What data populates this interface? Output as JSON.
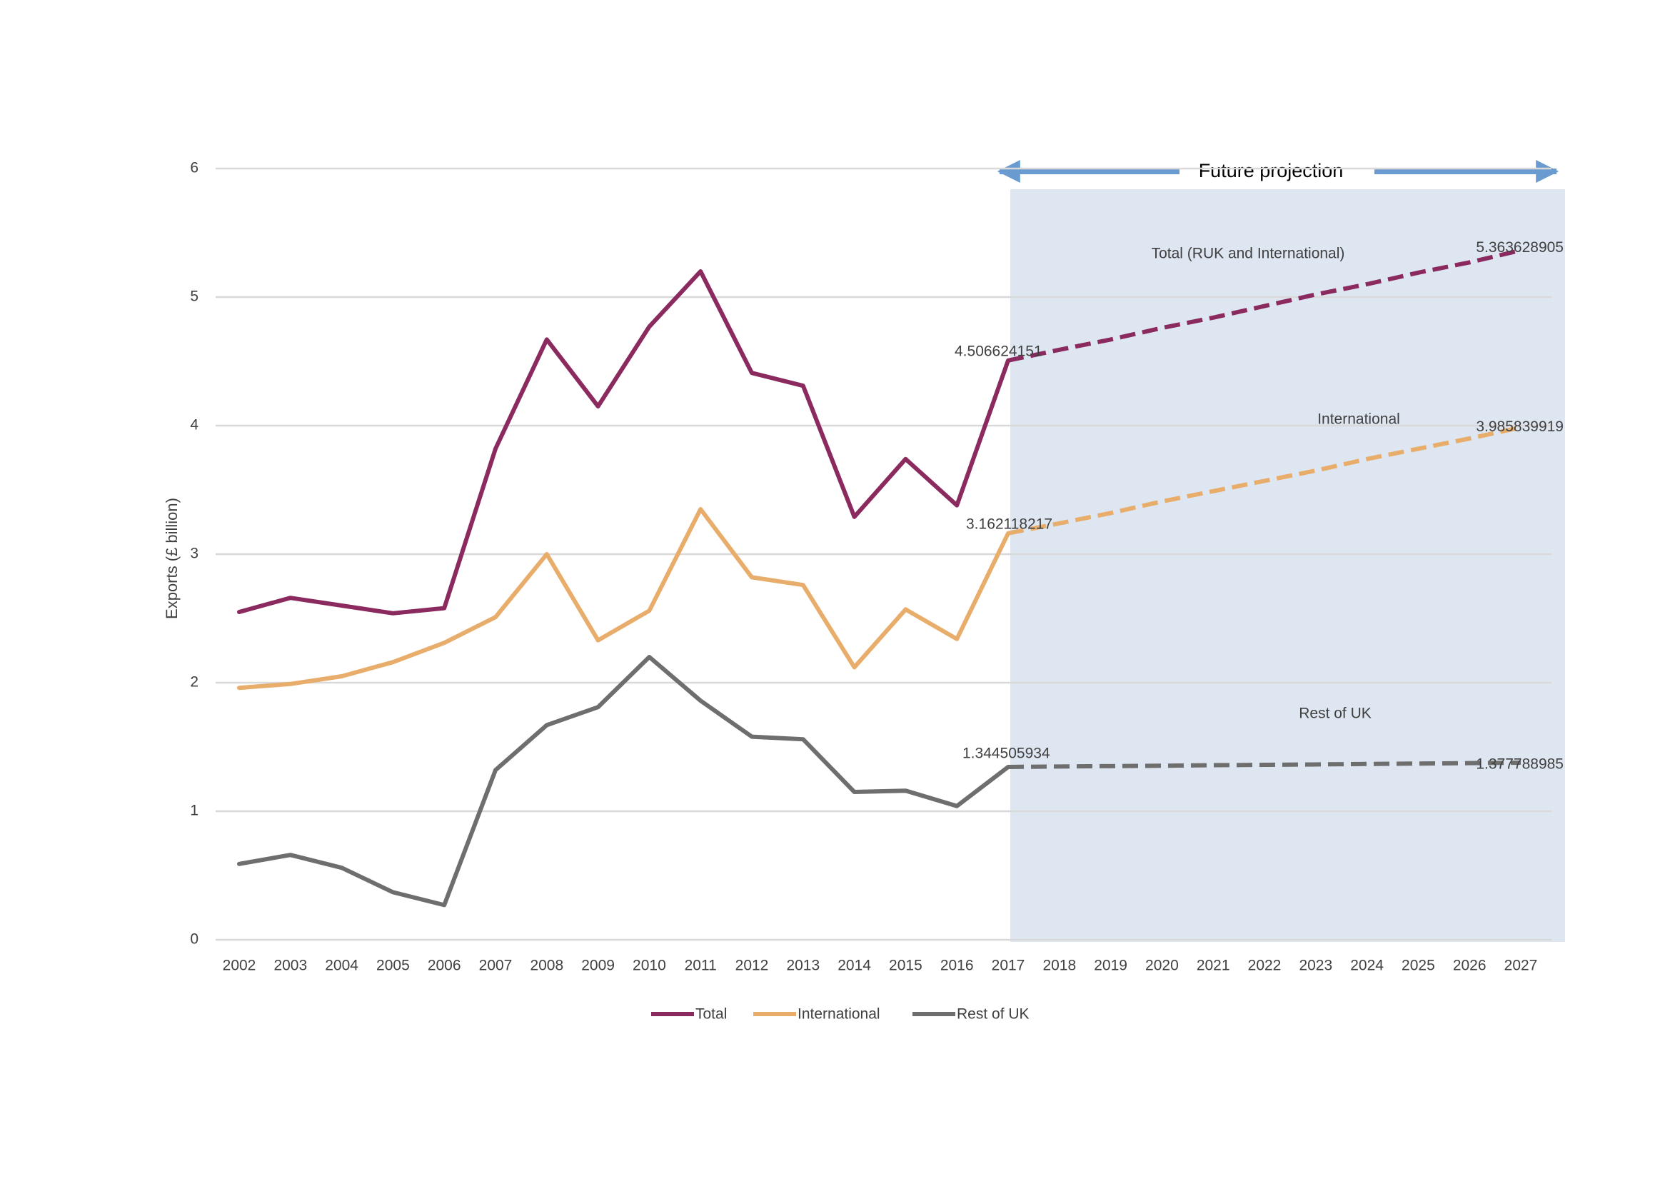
{
  "chart_data": {
    "type": "line",
    "ylabel": "Exports (£ billion)",
    "xlabel": "",
    "ylim": [
      0,
      6
    ],
    "yticks": [
      0,
      1,
      2,
      3,
      4,
      5,
      6
    ],
    "x": [
      2002,
      2003,
      2004,
      2005,
      2006,
      2007,
      2008,
      2009,
      2010,
      2011,
      2012,
      2013,
      2014,
      2015,
      2016,
      2017,
      2018,
      2019,
      2020,
      2021,
      2022,
      2023,
      2024,
      2025,
      2026,
      2027
    ],
    "grid": true,
    "legend_position": "bottom",
    "projection_start": 2017,
    "projection_label": "Future projection",
    "series": [
      {
        "name": "Total",
        "color": "#8B2A5F",
        "region_label": "Total (RUK and International)",
        "historical": [
          2.55,
          2.66,
          2.6,
          2.54,
          2.58,
          3.82,
          4.67,
          4.15,
          4.77,
          5.2,
          4.41,
          4.31,
          3.29,
          3.74,
          3.38,
          4.506624151
        ],
        "projection": [
          4.506624151,
          4.59,
          4.67,
          4.76,
          4.84,
          4.93,
          5.02,
          5.1,
          5.19,
          5.27,
          5.363628905
        ],
        "start_label": "4.506624151",
        "end_label": "5.363628905"
      },
      {
        "name": "International",
        "color": "#E8AD6B",
        "region_label": "International",
        "historical": [
          1.96,
          1.99,
          2.05,
          2.16,
          2.31,
          2.51,
          3.0,
          2.33,
          2.56,
          3.35,
          2.82,
          2.76,
          2.12,
          2.57,
          2.34,
          3.162118217
        ],
        "projection": [
          3.162118217,
          3.24,
          3.32,
          3.41,
          3.49,
          3.57,
          3.65,
          3.74,
          3.82,
          3.9,
          3.985839919
        ],
        "start_label": "3.162118217",
        "end_label": "3.985839919"
      },
      {
        "name": "Rest of UK",
        "color": "#6E6E6E",
        "region_label": "Rest of UK",
        "historical": [
          0.59,
          0.66,
          0.56,
          0.37,
          0.27,
          1.32,
          1.67,
          1.81,
          2.2,
          1.86,
          1.58,
          1.56,
          1.15,
          1.16,
          1.04,
          1.344505934
        ],
        "projection": [
          1.344505934,
          1.348,
          1.351,
          1.354,
          1.358,
          1.361,
          1.364,
          1.368,
          1.371,
          1.374,
          1.377788985
        ],
        "start_label": "1.344505934",
        "end_label": "1.377788985"
      }
    ]
  },
  "colors": {
    "projection_fill": "#DEE6F1",
    "arrow": "#6A9BD0",
    "gridline": "#D9D9D9"
  }
}
